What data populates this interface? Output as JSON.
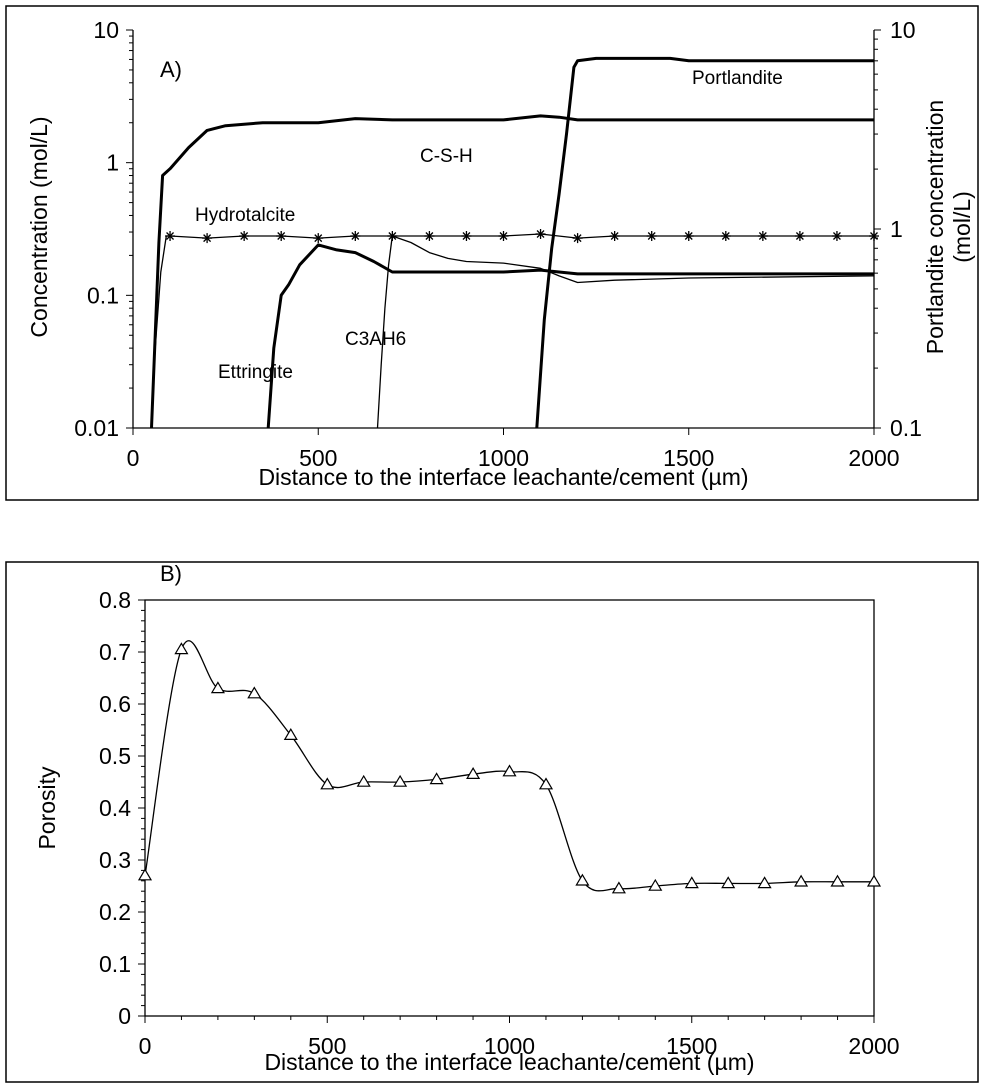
{
  "chart_data": [
    {
      "panel": "A)",
      "type": "line",
      "xlabel": "Distance to the interface leachante/cement (µm)",
      "ylabel": "Concentration (mol/L)",
      "y2label_line1": "Portlandite concentration",
      "y2label_line2": "(mol/L)",
      "xlim": [
        0,
        2000
      ],
      "ylim": [
        0.01,
        10
      ],
      "y2lim": [
        0.1,
        10
      ],
      "yscale": "log",
      "y2scale": "log",
      "grid": false,
      "x_ticks": [
        "0",
        "500",
        "1000",
        "1500",
        "2000"
      ],
      "y_ticks": [
        "0.01",
        "0.1",
        "1",
        "10"
      ],
      "y2_ticks": [
        "0.1",
        "1",
        "10"
      ],
      "series": [
        {
          "name": "C-S-H",
          "axis": "left",
          "points": [
            [
              50,
              0.01
            ],
            [
              60,
              0.05
            ],
            [
              70,
              0.25
            ],
            [
              80,
              0.8
            ],
            [
              100,
              0.9
            ],
            [
              150,
              1.3
            ],
            [
              200,
              1.75
            ],
            [
              250,
              1.9
            ],
            [
              300,
              1.95
            ],
            [
              350,
              2.0
            ],
            [
              500,
              2.0
            ],
            [
              600,
              2.15
            ],
            [
              700,
              2.1
            ],
            [
              1000,
              2.1
            ],
            [
              1100,
              2.25
            ],
            [
              1150,
              2.2
            ],
            [
              1200,
              2.1
            ],
            [
              2000,
              2.1
            ]
          ]
        },
        {
          "name": "Portlandite",
          "axis": "right",
          "points": [
            [
              1090,
              0.1
            ],
            [
              1110,
              0.35
            ],
            [
              1130,
              0.8
            ],
            [
              1150,
              1.5
            ],
            [
              1170,
              3.0
            ],
            [
              1190,
              6.5
            ],
            [
              1200,
              7.0
            ],
            [
              1250,
              7.2
            ],
            [
              1450,
              7.2
            ],
            [
              1500,
              7.0
            ],
            [
              2000,
              7.0
            ]
          ]
        },
        {
          "name": "Hydrotalcite",
          "axis": "left",
          "marker": "asterisk",
          "points": [
            [
              50,
              0.01
            ],
            [
              60,
              0.04
            ],
            [
              75,
              0.15
            ],
            [
              90,
              0.28
            ],
            [
              100,
              0.28
            ],
            [
              200,
              0.27
            ],
            [
              300,
              0.28
            ],
            [
              400,
              0.28
            ],
            [
              500,
              0.27
            ],
            [
              600,
              0.28
            ],
            [
              700,
              0.28
            ],
            [
              800,
              0.28
            ],
            [
              900,
              0.28
            ],
            [
              1000,
              0.28
            ],
            [
              1100,
              0.29
            ],
            [
              1200,
              0.27
            ],
            [
              1300,
              0.28
            ],
            [
              1400,
              0.28
            ],
            [
              1500,
              0.28
            ],
            [
              1600,
              0.28
            ],
            [
              1700,
              0.28
            ],
            [
              1800,
              0.28
            ],
            [
              1900,
              0.28
            ],
            [
              2000,
              0.28
            ]
          ]
        },
        {
          "name": "Ettringite",
          "axis": "left",
          "points": [
            [
              365,
              0.01
            ],
            [
              380,
              0.04
            ],
            [
              400,
              0.1
            ],
            [
              420,
              0.12
            ],
            [
              450,
              0.17
            ],
            [
              500,
              0.24
            ],
            [
              550,
              0.22
            ],
            [
              600,
              0.21
            ],
            [
              650,
              0.18
            ],
            [
              700,
              0.15
            ],
            [
              1000,
              0.15
            ],
            [
              1100,
              0.155
            ],
            [
              1150,
              0.15
            ],
            [
              1200,
              0.145
            ],
            [
              2000,
              0.145
            ]
          ]
        },
        {
          "name": "C3AH6",
          "axis": "left",
          "points": [
            [
              660,
              0.01
            ],
            [
              670,
              0.03
            ],
            [
              680,
              0.08
            ],
            [
              690,
              0.17
            ],
            [
              700,
              0.28
            ],
            [
              750,
              0.25
            ],
            [
              800,
              0.21
            ],
            [
              850,
              0.19
            ],
            [
              900,
              0.18
            ],
            [
              1000,
              0.175
            ],
            [
              1100,
              0.16
            ],
            [
              1150,
              0.14
            ],
            [
              1200,
              0.125
            ],
            [
              1300,
              0.13
            ],
            [
              1500,
              0.135
            ],
            [
              2000,
              0.14
            ]
          ]
        }
      ],
      "annotations": [
        "C-S-H",
        "Portlandite",
        "Hydrotalcite",
        "Ettringite",
        "C3AH6"
      ]
    },
    {
      "panel": "B)",
      "type": "line",
      "xlabel": "Distance to the interface leachante/cement (µm)",
      "ylabel": "Porosity",
      "xlim": [
        0,
        2000
      ],
      "ylim": [
        0,
        0.8
      ],
      "grid": false,
      "x_ticks": [
        "0",
        "500",
        "1000",
        "1500",
        "2000"
      ],
      "y_ticks": [
        "0",
        "0.1",
        "0.2",
        "0.3",
        "0.4",
        "0.5",
        "0.6",
        "0.7",
        "0.8"
      ],
      "series": [
        {
          "name": "Porosity",
          "marker": "triangle",
          "x": [
            0,
            100,
            200,
            300,
            400,
            500,
            600,
            700,
            800,
            900,
            1000,
            1100,
            1200,
            1300,
            1400,
            1500,
            1600,
            1700,
            1800,
            1900,
            2000
          ],
          "y": [
            0.27,
            0.705,
            0.63,
            0.62,
            0.54,
            0.445,
            0.45,
            0.45,
            0.455,
            0.465,
            0.47,
            0.445,
            0.26,
            0.245,
            0.25,
            0.255,
            0.255,
            0.255,
            0.258,
            0.258,
            0.258
          ]
        }
      ]
    }
  ]
}
